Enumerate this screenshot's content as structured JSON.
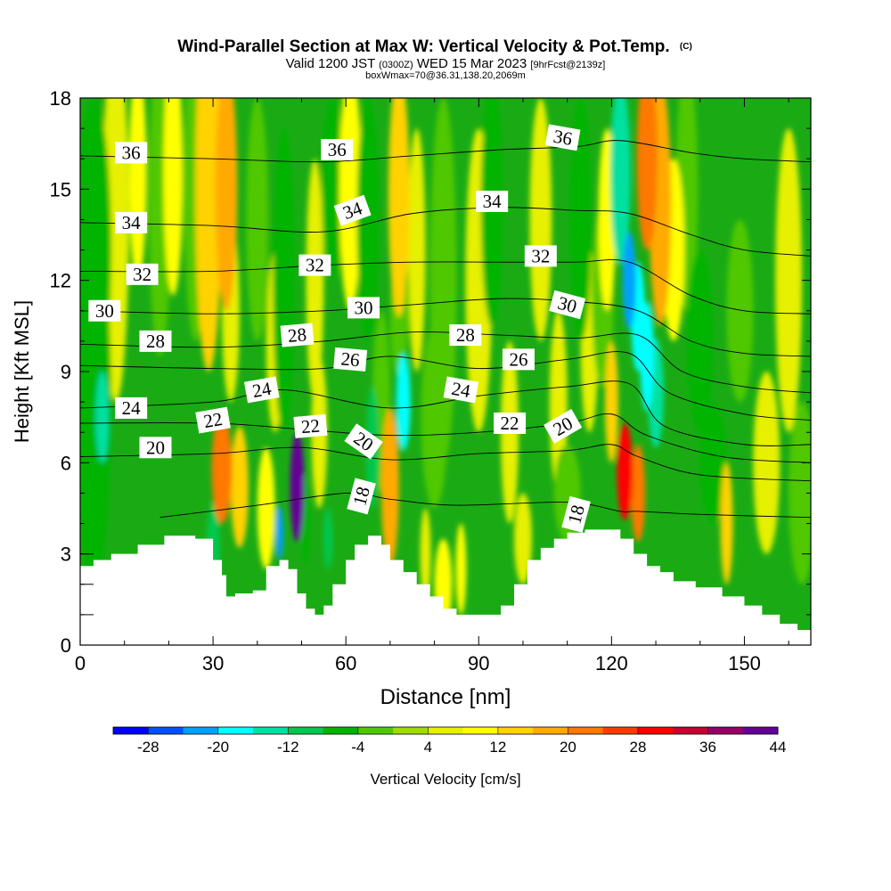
{
  "title": {
    "main": "Wind-Parallel Section at Max W: Vertical Velocity & Pot.Temp.",
    "copyright": "(C)",
    "valid_prefix": "Valid 1200 JST",
    "valid_z": "(0300Z)",
    "valid_day": "WED 15 Mar 2023",
    "valid_fcst": "[9hrFcst@2139z]",
    "box": "boxWmax=70@36.31,138.20,2069m"
  },
  "chart_data": {
    "type": "heatmap",
    "xlabel": "Distance [nm]",
    "ylabel": "Height [Kft MSL]",
    "xlim": [
      0,
      165
    ],
    "ylim": [
      0,
      18
    ],
    "x_ticks": [
      "0",
      "30",
      "60",
      "90",
      "120",
      "150"
    ],
    "y_ticks": [
      "0",
      "3",
      "6",
      "9",
      "12",
      "15",
      "18"
    ],
    "colorbar": {
      "label": "Vertical Velocity [cm/s]",
      "tick_labels": [
        "-28",
        "-20",
        "-12",
        "-4",
        "4",
        "12",
        "20",
        "28",
        "36",
        "44"
      ],
      "colors": [
        "#0000ff",
        "#0050ff",
        "#00a0ff",
        "#00ffff",
        "#00e0a0",
        "#00c850",
        "#00b400",
        "#50c800",
        "#a0dc00",
        "#e6f000",
        "#ffff00",
        "#ffd200",
        "#ffaa00",
        "#ff7800",
        "#ff3c00",
        "#ff0000",
        "#c80032",
        "#960064",
        "#640096"
      ]
    },
    "terrain_top": [
      [
        0,
        2.6
      ],
      [
        3,
        2.8
      ],
      [
        7,
        3.0
      ],
      [
        13,
        3.3
      ],
      [
        19,
        3.6
      ],
      [
        26,
        3.5
      ],
      [
        30,
        2.8
      ],
      [
        32,
        2.3
      ],
      [
        33,
        1.6
      ],
      [
        35,
        1.7
      ],
      [
        39,
        1.8
      ],
      [
        42,
        2.6
      ],
      [
        45,
        2.8
      ],
      [
        47,
        2.5
      ],
      [
        49,
        1.7
      ],
      [
        51,
        1.2
      ],
      [
        53,
        1.0
      ],
      [
        55,
        1.3
      ],
      [
        57,
        2.0
      ],
      [
        60,
        2.8
      ],
      [
        62,
        3.3
      ],
      [
        65,
        3.6
      ],
      [
        68,
        3.3
      ],
      [
        70,
        2.8
      ],
      [
        73,
        2.4
      ],
      [
        76,
        2.0
      ],
      [
        79,
        1.6
      ],
      [
        82,
        1.2
      ],
      [
        85,
        1.0
      ],
      [
        90,
        1.0
      ],
      [
        95,
        1.3
      ],
      [
        98,
        2.0
      ],
      [
        101,
        2.8
      ],
      [
        104,
        3.2
      ],
      [
        107,
        3.5
      ],
      [
        110,
        3.7
      ],
      [
        114,
        3.8
      ],
      [
        119,
        3.8
      ],
      [
        122,
        3.5
      ],
      [
        125,
        3.0
      ],
      [
        128,
        2.6
      ],
      [
        131,
        2.4
      ],
      [
        134,
        2.1
      ],
      [
        139,
        1.9
      ],
      [
        145,
        1.6
      ],
      [
        150,
        1.3
      ],
      [
        154,
        1.0
      ],
      [
        158,
        0.7
      ],
      [
        162,
        0.5
      ],
      [
        165,
        0.3
      ]
    ],
    "velocity_cells": [
      {
        "x": 3,
        "y": 8,
        "v": -8,
        "sx": 4,
        "sy": 6
      },
      {
        "x": 3,
        "y": 13,
        "v": -6,
        "sx": 4,
        "sy": 5
      },
      {
        "x": 5,
        "y": 7.5,
        "v": -16,
        "sx": 1.5,
        "sy": 1.5
      },
      {
        "x": 8,
        "y": 14,
        "v": 4,
        "sx": 3,
        "sy": 6
      },
      {
        "x": 13,
        "y": 15.5,
        "v": 8,
        "sx": 2,
        "sy": 3.5
      },
      {
        "x": 18,
        "y": 14.5,
        "v": -4,
        "sx": 2.5,
        "sy": 5
      },
      {
        "x": 21,
        "y": 15.5,
        "v": 10,
        "sx": 2.2,
        "sy": 4
      },
      {
        "x": 26,
        "y": 15,
        "v": -4,
        "sx": 2.5,
        "sy": 5
      },
      {
        "x": 29,
        "y": 15,
        "v": 12,
        "sx": 3,
        "sy": 6
      },
      {
        "x": 33,
        "y": 15,
        "v": 16,
        "sx": 2.5,
        "sy": 4
      },
      {
        "x": 30,
        "y": 3.2,
        "v": -12,
        "sx": 1.5,
        "sy": 1.5
      },
      {
        "x": 32,
        "y": 5.8,
        "v": 22,
        "sx": 2.3,
        "sy": 1.8
      },
      {
        "x": 36,
        "y": 5.2,
        "v": 12,
        "sx": 2,
        "sy": 2
      },
      {
        "x": 34,
        "y": 11,
        "v": 6,
        "sx": 2,
        "sy": 3
      },
      {
        "x": 40,
        "y": 14,
        "v": -4,
        "sx": 2.5,
        "sy": 4
      },
      {
        "x": 44,
        "y": 10,
        "v": 6,
        "sx": 2,
        "sy": 3
      },
      {
        "x": 42,
        "y": 4.5,
        "v": 8,
        "sx": 2,
        "sy": 2
      },
      {
        "x": 45,
        "y": 3.7,
        "v": -22,
        "sx": 0.9,
        "sy": 0.9
      },
      {
        "x": 46,
        "y": 12,
        "v": -8,
        "sx": 2.5,
        "sy": 5
      },
      {
        "x": 49,
        "y": 5.2,
        "v": 40,
        "sx": 1.6,
        "sy": 1.8
      },
      {
        "x": 49,
        "y": 4.7,
        "v": 44,
        "sx": 0.6,
        "sy": 0.8
      },
      {
        "x": 51,
        "y": 4.1,
        "v": -8,
        "sx": 1,
        "sy": 1.5
      },
      {
        "x": 54,
        "y": 7,
        "v": 6,
        "sx": 1.8,
        "sy": 2.5
      },
      {
        "x": 56,
        "y": 3.5,
        "v": -10,
        "sx": 1,
        "sy": 1
      },
      {
        "x": 53,
        "y": 12,
        "v": 6,
        "sx": 2,
        "sy": 4
      },
      {
        "x": 57,
        "y": 15,
        "v": -6,
        "sx": 2.5,
        "sy": 3
      },
      {
        "x": 61,
        "y": 15,
        "v": 8,
        "sx": 2.5,
        "sy": 4
      },
      {
        "x": 65,
        "y": 14,
        "v": -8,
        "sx": 2.5,
        "sy": 4
      },
      {
        "x": 66,
        "y": 6.5,
        "v": -12,
        "sx": 1.4,
        "sy": 2
      },
      {
        "x": 68,
        "y": 8,
        "v": -4,
        "sx": 2,
        "sy": 3
      },
      {
        "x": 70,
        "y": 5.2,
        "v": 18,
        "sx": 2,
        "sy": 2.6
      },
      {
        "x": 73,
        "y": 8,
        "v": -18,
        "sx": 1.6,
        "sy": 1.6
      },
      {
        "x": 72,
        "y": 10.8,
        "v": -4,
        "sx": 2,
        "sy": 2
      },
      {
        "x": 72,
        "y": 14.8,
        "v": 14,
        "sx": 2.4,
        "sy": 4
      },
      {
        "x": 76,
        "y": 13,
        "v": 6,
        "sx": 2,
        "sy": 4
      },
      {
        "x": 78,
        "y": 3,
        "v": 4,
        "sx": 1.2,
        "sy": 1.5
      },
      {
        "x": 80,
        "y": 7.5,
        "v": -4,
        "sx": 3,
        "sy": 3
      },
      {
        "x": 82,
        "y": 2,
        "v": 10,
        "sx": 2,
        "sy": 1.5
      },
      {
        "x": 82,
        "y": 12,
        "v": -4,
        "sx": 3,
        "sy": 6
      },
      {
        "x": 86,
        "y": 2.5,
        "v": 8,
        "sx": 1.2,
        "sy": 1.5
      },
      {
        "x": 90,
        "y": 12,
        "v": 4,
        "sx": 3,
        "sy": 5
      },
      {
        "x": 93,
        "y": 14.5,
        "v": -6,
        "sx": 2.5,
        "sy": 4
      },
      {
        "x": 97,
        "y": 7,
        "v": 6,
        "sx": 2,
        "sy": 3
      },
      {
        "x": 100,
        "y": 3.5,
        "v": 4,
        "sx": 2,
        "sy": 1.5
      },
      {
        "x": 104,
        "y": 14,
        "v": 6,
        "sx": 2.5,
        "sy": 4
      },
      {
        "x": 108,
        "y": 8,
        "v": 4,
        "sx": 2,
        "sy": 3
      },
      {
        "x": 110,
        "y": 5,
        "v": -4,
        "sx": 3,
        "sy": 1.6
      },
      {
        "x": 113,
        "y": 14,
        "v": -6,
        "sx": 2.5,
        "sy": 4
      },
      {
        "x": 115,
        "y": 10,
        "v": 4,
        "sx": 2,
        "sy": 3
      },
      {
        "x": 118,
        "y": 11.5,
        "v": -4,
        "sx": 2.5,
        "sy": 3
      },
      {
        "x": 119,
        "y": 14,
        "v": 8,
        "sx": 2,
        "sy": 3
      },
      {
        "x": 122,
        "y": 15.5,
        "v": -16,
        "sx": 2.3,
        "sy": 3
      },
      {
        "x": 124,
        "y": 12,
        "v": -22,
        "sx": 1.5,
        "sy": 1.6
      },
      {
        "x": 126,
        "y": 10.8,
        "v": -20,
        "sx": 1.6,
        "sy": 1.8
      },
      {
        "x": 128,
        "y": 9.5,
        "v": -20,
        "sx": 1.6,
        "sy": 1.8
      },
      {
        "x": 130,
        "y": 8.3,
        "v": -16,
        "sx": 1.8,
        "sy": 1.8
      },
      {
        "x": 120,
        "y": 8,
        "v": 12,
        "sx": 1.5,
        "sy": 2
      },
      {
        "x": 123,
        "y": 5.7,
        "v": 30,
        "sx": 1.8,
        "sy": 1.6
      },
      {
        "x": 126,
        "y": 5,
        "v": 20,
        "sx": 1.6,
        "sy": 1.6
      },
      {
        "x": 128,
        "y": 16,
        "v": 20,
        "sx": 2.3,
        "sy": 3
      },
      {
        "x": 131,
        "y": 14.5,
        "v": 16,
        "sx": 2.5,
        "sy": 4
      },
      {
        "x": 134,
        "y": 13,
        "v": 10,
        "sx": 2.5,
        "sy": 3
      },
      {
        "x": 137,
        "y": 15,
        "v": -4,
        "sx": 2.5,
        "sy": 4
      },
      {
        "x": 140,
        "y": 10,
        "v": -8,
        "sx": 3,
        "sy": 3
      },
      {
        "x": 143,
        "y": 6,
        "v": -6,
        "sx": 3,
        "sy": 2
      },
      {
        "x": 146,
        "y": 4,
        "v": 12,
        "sx": 1.4,
        "sy": 2
      },
      {
        "x": 149,
        "y": 11,
        "v": -4,
        "sx": 3,
        "sy": 3
      },
      {
        "x": 155,
        "y": 6,
        "v": 4,
        "sx": 3,
        "sy": 3
      },
      {
        "x": 160,
        "y": 12,
        "v": 4,
        "sx": 3,
        "sy": 5
      },
      {
        "x": 163,
        "y": 5,
        "v": -4,
        "sx": 3,
        "sy": 3
      }
    ],
    "isentropes": [
      {
        "theta": 18,
        "points": [
          [
            18,
            4.2
          ],
          [
            40,
            4.6
          ],
          [
            60,
            5.0
          ],
          [
            70,
            4.8
          ],
          [
            85,
            4.6
          ],
          [
            110,
            4.7
          ],
          [
            122,
            4.4
          ],
          [
            126,
            4.4
          ],
          [
            140,
            4.3
          ],
          [
            165,
            4.2
          ]
        ]
      },
      {
        "theta": 20,
        "points": [
          [
            0,
            6.2
          ],
          [
            30,
            6.3
          ],
          [
            50,
            6.5
          ],
          [
            70,
            6.1
          ],
          [
            90,
            6.3
          ],
          [
            110,
            6.4
          ],
          [
            120,
            6.6
          ],
          [
            126,
            6.2
          ],
          [
            140,
            5.6
          ],
          [
            165,
            5.4
          ]
        ]
      },
      {
        "theta": 22,
        "points": [
          [
            0,
            7.3
          ],
          [
            30,
            7.3
          ],
          [
            50,
            7.1
          ],
          [
            70,
            6.9
          ],
          [
            90,
            7.0
          ],
          [
            110,
            7.3
          ],
          [
            120,
            7.6
          ],
          [
            128,
            6.9
          ],
          [
            145,
            6.2
          ],
          [
            165,
            6.0
          ]
        ]
      },
      {
        "theta": 24,
        "points": [
          [
            0,
            7.8
          ],
          [
            30,
            8.0
          ],
          [
            46,
            8.4
          ],
          [
            70,
            7.8
          ],
          [
            90,
            8.2
          ],
          [
            110,
            8.5
          ],
          [
            124,
            8.6
          ],
          [
            132,
            7.2
          ],
          [
            150,
            6.6
          ],
          [
            165,
            6.6
          ]
        ]
      },
      {
        "theta": 26,
        "points": [
          [
            0,
            9.2
          ],
          [
            30,
            9.1
          ],
          [
            55,
            9.1
          ],
          [
            70,
            9.5
          ],
          [
            90,
            9.1
          ],
          [
            110,
            9.4
          ],
          [
            124,
            9.6
          ],
          [
            133,
            8.3
          ],
          [
            150,
            7.6
          ],
          [
            165,
            7.4
          ]
        ]
      },
      {
        "theta": 28,
        "points": [
          [
            0,
            9.9
          ],
          [
            30,
            9.8
          ],
          [
            55,
            10.0
          ],
          [
            75,
            10.3
          ],
          [
            95,
            10.2
          ],
          [
            112,
            10.1
          ],
          [
            126,
            10.2
          ],
          [
            136,
            9.0
          ],
          [
            150,
            8.5
          ],
          [
            165,
            8.3
          ]
        ]
      },
      {
        "theta": 30,
        "points": [
          [
            0,
            11.0
          ],
          [
            30,
            10.9
          ],
          [
            55,
            11.0
          ],
          [
            75,
            11.2
          ],
          [
            95,
            11.4
          ],
          [
            112,
            11.3
          ],
          [
            126,
            11.0
          ],
          [
            138,
            10.0
          ],
          [
            150,
            9.6
          ],
          [
            165,
            9.5
          ]
        ]
      },
      {
        "theta": 32,
        "points": [
          [
            0,
            12.3
          ],
          [
            30,
            12.3
          ],
          [
            55,
            12.5
          ],
          [
            75,
            12.6
          ],
          [
            95,
            12.6
          ],
          [
            112,
            12.6
          ],
          [
            124,
            12.6
          ],
          [
            138,
            11.5
          ],
          [
            150,
            11.0
          ],
          [
            165,
            10.9
          ]
        ]
      },
      {
        "theta": 34,
        "points": [
          [
            0,
            13.9
          ],
          [
            30,
            13.8
          ],
          [
            55,
            13.6
          ],
          [
            75,
            14.2
          ],
          [
            95,
            14.4
          ],
          [
            112,
            14.3
          ],
          [
            124,
            14.2
          ],
          [
            138,
            13.5
          ],
          [
            150,
            13.0
          ],
          [
            165,
            12.8
          ]
        ]
      },
      {
        "theta": 36,
        "points": [
          [
            0,
            16.1
          ],
          [
            30,
            16.0
          ],
          [
            55,
            15.9
          ],
          [
            75,
            16.1
          ],
          [
            95,
            16.3
          ],
          [
            112,
            16.4
          ],
          [
            122,
            16.6
          ],
          [
            138,
            16.2
          ],
          [
            150,
            16.0
          ],
          [
            165,
            15.9
          ]
        ]
      }
    ],
    "contour_labels": [
      {
        "text": "36",
        "x": 11.5,
        "y": 16.2,
        "rot": 0
      },
      {
        "text": "36",
        "x": 58,
        "y": 16.3,
        "rot": 0
      },
      {
        "text": "36",
        "x": 109,
        "y": 16.7,
        "rot": 10
      },
      {
        "text": "34",
        "x": 11.5,
        "y": 13.9,
        "rot": 0
      },
      {
        "text": "34",
        "x": 61.5,
        "y": 14.3,
        "rot": -20
      },
      {
        "text": "34",
        "x": 93,
        "y": 14.6,
        "rot": 0
      },
      {
        "text": "32",
        "x": 14,
        "y": 12.2,
        "rot": 0
      },
      {
        "text": "32",
        "x": 53,
        "y": 12.5,
        "rot": 0
      },
      {
        "text": "32",
        "x": 104,
        "y": 12.8,
        "rot": 0
      },
      {
        "text": "30",
        "x": 5.5,
        "y": 11.0,
        "rot": 0
      },
      {
        "text": "30",
        "x": 64,
        "y": 11.1,
        "rot": 0
      },
      {
        "text": "30",
        "x": 110,
        "y": 11.2,
        "rot": 15
      },
      {
        "text": "28",
        "x": 17,
        "y": 10.0,
        "rot": 0
      },
      {
        "text": "28",
        "x": 49,
        "y": 10.2,
        "rot": -5
      },
      {
        "text": "28",
        "x": 87,
        "y": 10.2,
        "rot": 0
      },
      {
        "text": "26",
        "x": 61,
        "y": 9.4,
        "rot": 5
      },
      {
        "text": "26",
        "x": 99,
        "y": 9.4,
        "rot": 0
      },
      {
        "text": "24",
        "x": 11.5,
        "y": 7.8,
        "rot": 0
      },
      {
        "text": "24",
        "x": 41,
        "y": 8.4,
        "rot": -10
      },
      {
        "text": "24",
        "x": 86,
        "y": 8.4,
        "rot": 10
      },
      {
        "text": "22",
        "x": 30,
        "y": 7.4,
        "rot": -10
      },
      {
        "text": "22",
        "x": 52,
        "y": 7.2,
        "rot": -5
      },
      {
        "text": "22",
        "x": 97,
        "y": 7.3,
        "rot": 0
      },
      {
        "text": "20",
        "x": 17,
        "y": 6.5,
        "rot": 0
      },
      {
        "text": "20",
        "x": 64,
        "y": 6.7,
        "rot": 35
      },
      {
        "text": "20",
        "x": 109,
        "y": 7.2,
        "rot": -30
      },
      {
        "text": "18",
        "x": 63.5,
        "y": 4.9,
        "rot": -75
      },
      {
        "text": "18",
        "x": 112,
        "y": 4.3,
        "rot": -75
      }
    ]
  }
}
